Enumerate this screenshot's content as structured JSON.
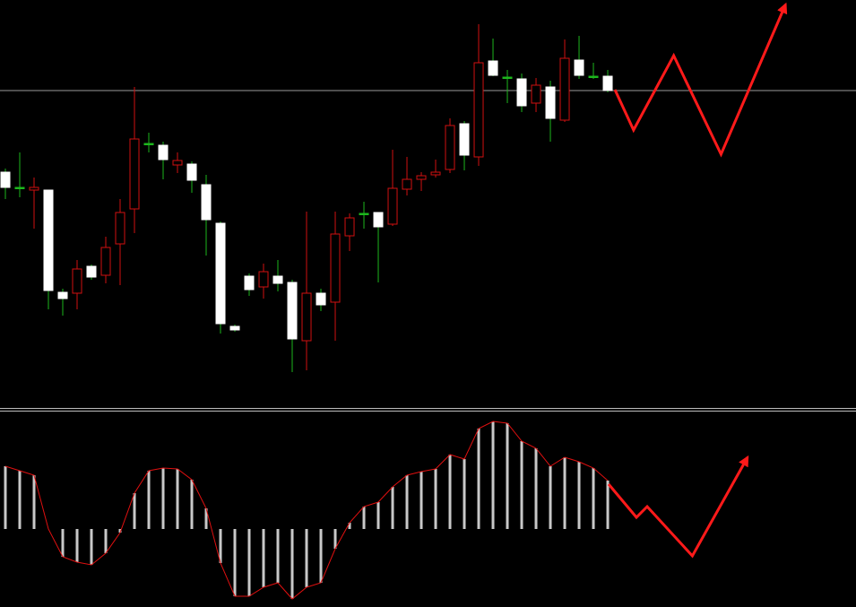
{
  "chart_data": [
    {
      "type": "candlestick",
      "xlim": [
        -0.375,
        59.31
      ],
      "ylim": [
        0,
        455
      ],
      "open": [
        263,
        246,
        243,
        243,
        129,
        128,
        158,
        148,
        183,
        222,
        295,
        293,
        271,
        272,
        249,
        206,
        91,
        147,
        135,
        147,
        140,
        75,
        128,
        118,
        192,
        217,
        218,
        205,
        244,
        255,
        260,
        266,
        317,
        280,
        387,
        369,
        367,
        340,
        358,
        321,
        388,
        370,
        370
      ],
      "high": [
        267,
        285,
        257,
        243,
        133,
        165,
        160,
        191,
        233,
        358,
        307,
        297,
        285,
        275,
        260,
        208,
        93,
        150,
        161,
        165,
        143,
        219,
        133,
        219,
        217,
        230,
        218,
        288,
        280,
        263,
        277,
        323,
        320,
        428,
        412,
        377,
        373,
        368,
        365,
        411,
        415,
        385,
        377
      ],
      "low": [
        233,
        235,
        200,
        110,
        103,
        110,
        143,
        139,
        137,
        195,
        285,
        255,
        262,
        240,
        170,
        83,
        85,
        125,
        122,
        130,
        40,
        42,
        108,
        75,
        175,
        200,
        140,
        203,
        237,
        242,
        257,
        262,
        265,
        270,
        370,
        340,
        330,
        330,
        297,
        319,
        367,
        367,
        352
      ],
      "close": [
        246,
        246,
        246,
        131,
        122,
        155,
        146,
        179,
        218,
        300,
        295,
        277,
        276,
        254,
        210,
        94,
        87,
        132,
        152,
        139,
        77,
        128,
        115,
        194,
        212,
        217,
        202,
        245,
        255,
        259,
        263,
        315,
        282,
        385,
        371,
        369,
        337,
        360,
        323,
        390,
        371,
        370,
        354
      ],
      "up_color": "#d01010",
      "down_color": "#ffffff",
      "wick_up_color": "#d01010",
      "wick_down_color": "#1db61d",
      "hline": 354,
      "hline_color": "#9a9a9a",
      "forecast": {
        "x": [
          42.5,
          43.8,
          46.6,
          49.9,
          54.4
        ],
        "values": [
          355,
          310,
          393,
          283,
          450
        ],
        "color": "#ff1a1a"
      }
    },
    {
      "type": "histogram",
      "xlim": [
        -0.375,
        59.31
      ],
      "ylim": [
        -87,
        130
      ],
      "values": [
        70,
        65,
        60,
        0,
        -31,
        -37,
        -40,
        -27,
        -4,
        40,
        65,
        68,
        67,
        55,
        23,
        -38,
        -75,
        -75,
        -65,
        -60,
        -78,
        -65,
        -60,
        -22,
        7,
        25,
        30,
        47,
        60,
        64,
        67,
        83,
        78,
        112,
        120,
        118,
        98,
        90,
        70,
        80,
        75,
        68,
        54
      ],
      "color": "#c8c8c8",
      "line_color": "#e01010",
      "forecast": {
        "x": [
          42.06,
          44.0,
          44.75,
          47.9,
          51.75
        ],
        "values": [
          50,
          13,
          25,
          -30,
          80
        ],
        "color": "#ff1a1a"
      }
    }
  ]
}
